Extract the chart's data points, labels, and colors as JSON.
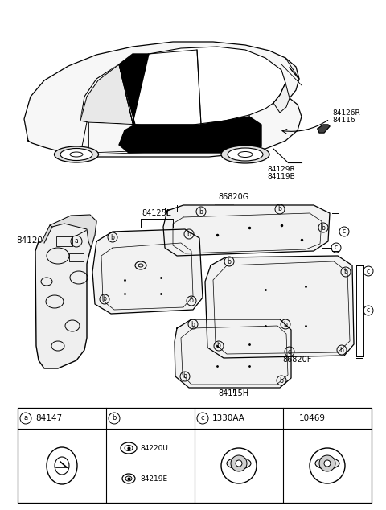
{
  "bg_color": "#ffffff",
  "lc": "#000000",
  "fig_w": 4.8,
  "fig_h": 6.34,
  "dpi": 100,
  "car_label_84126R": "84126R",
  "car_label_84116": "84116",
  "car_label_84129R": "84129R",
  "car_label_84119B": "84119B",
  "label_86820G": "86820G",
  "label_84125E": "84125E",
  "label_84120": "84120",
  "label_86820F": "86820F",
  "label_84115H": "84115H",
  "tbl_a_code": "84147",
  "tbl_b_code1": "84220U",
  "tbl_b_code2": "84219E",
  "tbl_c_code": "1330AA",
  "tbl_d_code": "10469"
}
